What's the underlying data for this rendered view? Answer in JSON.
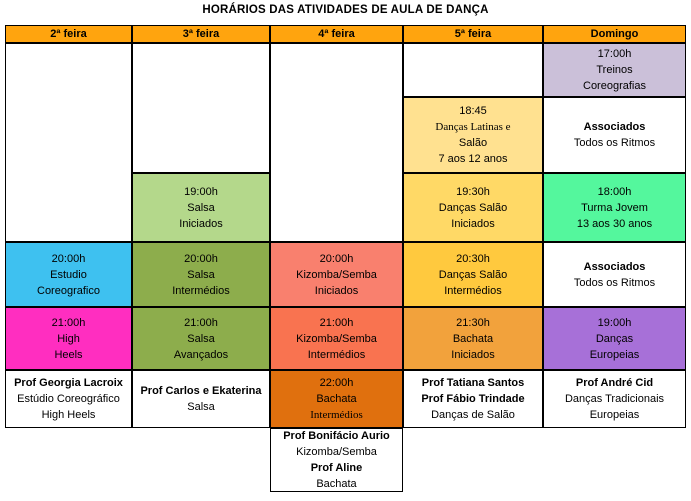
{
  "title": "HORÁRIOS DAS ATIVIDADES DE AULA DE DANÇA",
  "columns": [
    "2ª feira",
    "3ª feira",
    "4ª feira",
    "5ª feira",
    "Domingo"
  ],
  "palette": {
    "header": "#FFA40E",
    "white": "#FFFFFF",
    "lavender": "#CBC0D9",
    "paleYellow": "#FFE190",
    "lightGold": "#FFD966",
    "gold": "#FFC93E",
    "orange": "#F2A23C",
    "darkOrange": "#E0700E",
    "lightGreen": "#B4D88B",
    "olive": "#8DAD4C",
    "springGreen": "#54F79D",
    "skyBlue": "#3EC1F0",
    "magenta": "#FF2EC0",
    "salmon": "#F9806E",
    "orangeRed": "#F97350",
    "purple": "#A770D8"
  },
  "cells": [
    {
      "name": "header-2a-feira",
      "col": 1,
      "row": 0,
      "hdr": true,
      "bg": "header",
      "lines": [
        {
          "t": "2ª feira",
          "b": true
        }
      ]
    },
    {
      "name": "header-3a-feira",
      "col": 2,
      "row": 0,
      "hdr": true,
      "bg": "header",
      "lines": [
        {
          "t": "3ª feira",
          "b": true
        }
      ]
    },
    {
      "name": "header-4a-feira",
      "col": 3,
      "row": 0,
      "hdr": true,
      "bg": "header",
      "lines": [
        {
          "t": "4ª feira",
          "b": true
        }
      ]
    },
    {
      "name": "header-5a-feira",
      "col": 4,
      "row": 0,
      "hdr": true,
      "bg": "header",
      "lines": [
        {
          "t": "5ª feira",
          "b": true
        }
      ]
    },
    {
      "name": "header-domingo",
      "col": 5,
      "row": 0,
      "hdr": true,
      "bg": "header",
      "lines": [
        {
          "t": "Domingo",
          "b": true
        }
      ]
    },
    {
      "name": "seg-empty-cell",
      "col": 1,
      "row": 1,
      "rowspan": 3,
      "bg": "white",
      "lines": []
    },
    {
      "name": "seg-2000-estudio-coreografico",
      "col": 1,
      "row": 4,
      "bg": "skyBlue",
      "lines": [
        {
          "t": "20:00h"
        },
        {
          "t": "Estudio"
        },
        {
          "t": "Coreografico"
        }
      ]
    },
    {
      "name": "seg-2100-high-heels",
      "col": 1,
      "row": 5,
      "bg": "magenta",
      "lines": [
        {
          "t": "21:00h"
        },
        {
          "t": "High"
        },
        {
          "t": "Heels"
        }
      ]
    },
    {
      "name": "seg-prof-cell",
      "col": 1,
      "row": 6,
      "bg": "white",
      "lines": [
        {
          "t": "Prof Georgia Lacroix",
          "b": true
        },
        {
          "t": "Estúdio Coreográfico"
        },
        {
          "t": "High Heels"
        }
      ]
    },
    {
      "name": "ter-empty-cell",
      "col": 2,
      "row": 1,
      "rowspan": 2,
      "bg": "white",
      "lines": []
    },
    {
      "name": "ter-1900-salsa-iniciados",
      "col": 2,
      "row": 3,
      "bg": "lightGreen",
      "lines": [
        {
          "t": "19:00h"
        },
        {
          "t": "Salsa"
        },
        {
          "t": "Iniciados"
        }
      ]
    },
    {
      "name": "ter-2000-salsa-intermedios",
      "col": 2,
      "row": 4,
      "bg": "olive",
      "lines": [
        {
          "t": "20:00h"
        },
        {
          "t": "Salsa"
        },
        {
          "t": "Intermédios"
        }
      ]
    },
    {
      "name": "ter-2100-salsa-avancados",
      "col": 2,
      "row": 5,
      "bg": "olive",
      "lines": [
        {
          "t": "21:00h"
        },
        {
          "t": "Salsa"
        },
        {
          "t": "Avançados"
        }
      ]
    },
    {
      "name": "ter-prof-cell",
      "col": 2,
      "row": 6,
      "bg": "white",
      "lines": [
        {
          "t": "Prof Carlos e Ekaterina",
          "b": true
        },
        {
          "t": "Salsa"
        }
      ]
    },
    {
      "name": "qua-empty-cell",
      "col": 3,
      "row": 1,
      "rowspan": 3,
      "bg": "white",
      "lines": []
    },
    {
      "name": "qua-2000-kizomba-iniciados",
      "col": 3,
      "row": 4,
      "bg": "salmon",
      "lines": [
        {
          "t": "20:00h"
        },
        {
          "t": "Kizomba/Semba"
        },
        {
          "t": "Iniciados"
        }
      ]
    },
    {
      "name": "qua-2100-kizomba-intermedios",
      "col": 3,
      "row": 5,
      "bg": "orangeRed",
      "lines": [
        {
          "t": "21:00h"
        },
        {
          "t": "Kizomba/Semba"
        },
        {
          "t": "Intermédios"
        }
      ]
    },
    {
      "name": "qua-2200-bachata-intermedios",
      "col": 3,
      "row": 6,
      "bg": "darkOrange",
      "lines": [
        {
          "t": "22:00h"
        },
        {
          "t": "Bachata"
        },
        {
          "t": "Intermédios",
          "serif": true
        }
      ]
    },
    {
      "name": "qua-prof-cell",
      "col": 3,
      "row": 7,
      "bg": "white",
      "lines": [
        {
          "t": "Prof Bonifácio Aurio",
          "b": true
        },
        {
          "t": "Kizomba/Semba"
        },
        {
          "t": "Prof Aline",
          "b": true
        },
        {
          "t": "Bachata"
        }
      ]
    },
    {
      "name": "qui-empty-cell",
      "col": 4,
      "row": 1,
      "bg": "white",
      "lines": []
    },
    {
      "name": "qui-1845-dancas-latinas-salao",
      "col": 4,
      "row": 2,
      "bg": "paleYellow",
      "lines": [
        {
          "t": "18:45"
        },
        {
          "t": "Danças Latinas e",
          "serif": true
        },
        {
          "t": "Salão"
        },
        {
          "t": "7 aos 12 anos"
        }
      ]
    },
    {
      "name": "qui-1930-dancas-salao-iniciados",
      "col": 4,
      "row": 3,
      "bg": "lightGold",
      "lines": [
        {
          "t": "19:30h"
        },
        {
          "t": "Danças Salão"
        },
        {
          "t": "Iniciados"
        }
      ]
    },
    {
      "name": "qui-2030-dancas-salao-intermedios",
      "col": 4,
      "row": 4,
      "bg": "gold",
      "lines": [
        {
          "t": "20:30h"
        },
        {
          "t": "Danças Salão"
        },
        {
          "t": "Intermédios"
        }
      ]
    },
    {
      "name": "qui-2130-bachata-iniciados",
      "col": 4,
      "row": 5,
      "bg": "orange",
      "lines": [
        {
          "t": "21:30h"
        },
        {
          "t": "Bachata"
        },
        {
          "t": "Iniciados"
        }
      ]
    },
    {
      "name": "qui-prof-cell",
      "col": 4,
      "row": 6,
      "bg": "white",
      "lines": [
        {
          "t": "Prof Tatiana Santos",
          "b": true
        },
        {
          "t": "Prof Fábio Trindade",
          "b": true
        },
        {
          "t": "Danças de Salão"
        }
      ]
    },
    {
      "name": "dom-1700-treinos-coreografias",
      "col": 5,
      "row": 1,
      "bg": "lavender",
      "lines": [
        {
          "t": "17:00h"
        },
        {
          "t": "Treinos"
        },
        {
          "t": "Coreografias"
        }
      ]
    },
    {
      "name": "dom-associados-1",
      "col": 5,
      "row": 2,
      "bg": "white",
      "lines": [
        {
          "t": "Associados",
          "b": true
        },
        {
          "t": "Todos os Ritmos"
        }
      ]
    },
    {
      "name": "dom-1800-turma-jovem",
      "col": 5,
      "row": 3,
      "bg": "springGreen",
      "lines": [
        {
          "t": "18:00h"
        },
        {
          "t": "Turma Jovem"
        },
        {
          "t": "13 aos 30 anos"
        }
      ]
    },
    {
      "name": "dom-associados-2",
      "col": 5,
      "row": 4,
      "bg": "white",
      "lines": [
        {
          "t": "Associados",
          "b": true
        },
        {
          "t": "Todos os Ritmos"
        }
      ]
    },
    {
      "name": "dom-1900-dancas-europeias",
      "col": 5,
      "row": 5,
      "bg": "purple",
      "lines": [
        {
          "t": "19:00h"
        },
        {
          "t": "Danças"
        },
        {
          "t": "Europeias"
        }
      ]
    },
    {
      "name": "dom-prof-cell",
      "col": 5,
      "row": 6,
      "bg": "white",
      "lines": [
        {
          "t": "Prof André Cid",
          "b": true
        },
        {
          "t": "Danças Tradicionais"
        },
        {
          "t": "Europeias"
        }
      ]
    }
  ]
}
